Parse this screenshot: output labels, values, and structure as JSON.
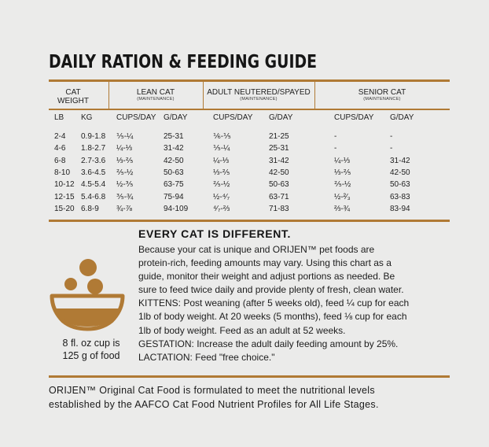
{
  "title": "DAILY RATION & FEEDING GUIDE",
  "table": {
    "groups": [
      {
        "label": "CAT",
        "label2": "WEIGHT",
        "sub": ""
      },
      {
        "label": "LEAN CAT",
        "label2": "",
        "sub": "(MAINTENANCE)"
      },
      {
        "label": "ADULT NEUTERED/SPAYED",
        "label2": "",
        "sub": "(MAINTENANCE)"
      },
      {
        "label": "SENIOR CAT",
        "label2": "",
        "sub": "(MAINTENANCE)"
      }
    ],
    "columns": [
      "LB",
      "KG",
      "CUPS/DAY",
      "G/DAY",
      "CUPS/DAY",
      "G/DAY",
      "CUPS/DAY",
      "G/DAY"
    ],
    "rows": [
      [
        "2-4",
        "0.9-1.8",
        "⅕-¼",
        "25-31",
        "⅙-⅕",
        "21-25",
        "-",
        "-"
      ],
      [
        "4-6",
        "1.8-2.7",
        "¼-⅓",
        "31-42",
        "⅕-¼",
        "25-31",
        "-",
        "-"
      ],
      [
        "6-8",
        "2.7-3.6",
        "⅓-⅖",
        "42-50",
        "¼-⅓",
        "31-42",
        "¼-⅓",
        "31-42"
      ],
      [
        "8-10",
        "3.6-4.5",
        "⅖-½",
        "50-63",
        "⅓-⅖",
        "42-50",
        "⅓-⅖",
        "42-50"
      ],
      [
        "10-12",
        "4.5-5.4",
        "½-⅗",
        "63-75",
        "⅖-½",
        "50-63",
        "⅖-½",
        "50-63"
      ],
      [
        "12-15",
        "5.4-6.8",
        "⅗-¾",
        "75-94",
        "½-⁴⁄₇",
        "63-71",
        "½-²⁄₃",
        "63-83"
      ],
      [
        "15-20",
        "6.8-9",
        "¾-⅞",
        "94-109",
        "⁴⁄₇-⅔",
        "71-83",
        "⅔-¾",
        "83-94"
      ]
    ]
  },
  "bowl": {
    "caption_line1": "8 fl. oz cup is",
    "caption_line2": "125 g of food",
    "color": "#b07a35"
  },
  "info": {
    "heading": "EVERY CAT IS DIFFERENT.",
    "lines": [
      "Because your cat is unique and ORIJEN™ pet foods are",
      "protein-rich, feeding amounts may vary. Using this chart as a",
      "guide, monitor their weight and adjust portions as needed. Be",
      "sure to feed twice daily and provide plenty of fresh, clean water.",
      "KITTENS: Post weaning (after 5 weeks old), feed ¼ cup for each",
      "1lb of body weight. At 20 weeks (5 months), feed ⅛ cup for each",
      "1lb of body weight. Feed as an adult at 52 weeks.",
      "GESTATION: Increase the adult daily feeding amount by 25%.",
      "LACTATION: Feed \"free choice.\""
    ]
  },
  "footer": {
    "lines": [
      "ORIJEN™ Original Cat Food is formulated to meet the nutritional levels",
      "established by the AAFCO Cat Food Nutrient Profiles for All Life Stages."
    ]
  },
  "colors": {
    "accent": "#b07a35",
    "background": "#ebebea",
    "text": "#1c1c1c"
  }
}
